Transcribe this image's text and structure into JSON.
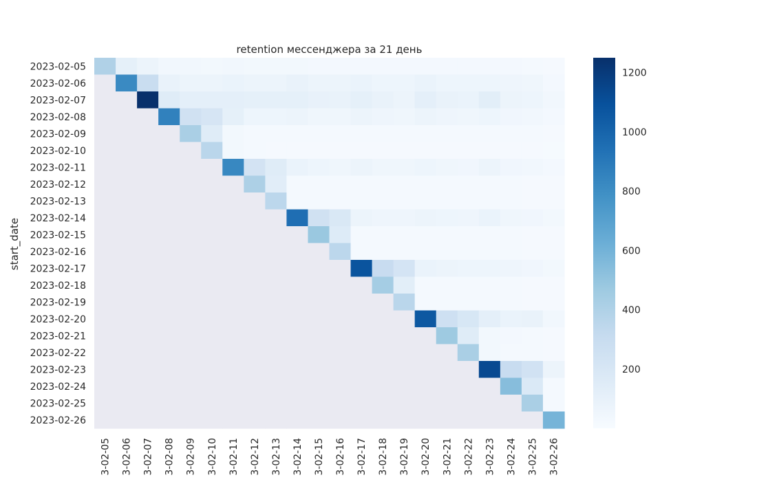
{
  "chart_data": {
    "type": "heatmap",
    "title": "retention мессенджера за 21 день",
    "ylabel": "start_date",
    "xlabel": "",
    "colormap": "Blues",
    "missing_color": "#eaeaf2",
    "x_tick_labels": [
      "3-02-05",
      "3-02-06",
      "3-02-07",
      "3-02-08",
      "3-02-09",
      "3-02-10",
      "3-02-11",
      "3-02-12",
      "3-02-13",
      "3-02-14",
      "3-02-15",
      "3-02-16",
      "3-02-17",
      "3-02-18",
      "3-02-19",
      "3-02-20",
      "3-02-21",
      "3-02-22",
      "3-02-23",
      "3-02-24",
      "3-02-25",
      "3-02-26"
    ],
    "y_categories": [
      "2023-02-05",
      "2023-02-06",
      "2023-02-07",
      "2023-02-08",
      "2023-02-09",
      "2023-02-10",
      "2023-02-11",
      "2023-02-12",
      "2023-02-13",
      "2023-02-14",
      "2023-02-15",
      "2023-02-16",
      "2023-02-17",
      "2023-02-18",
      "2023-02-19",
      "2023-02-20",
      "2023-02-21",
      "2023-02-22",
      "2023-02-23",
      "2023-02-24",
      "2023-02-25",
      "2023-02-26"
    ],
    "colorbar": {
      "min": 0,
      "max": 1250,
      "ticks": [
        200,
        400,
        600,
        800,
        1000,
        1200
      ]
    },
    "values": [
      [
        400,
        110,
        70,
        40,
        35,
        30,
        40,
        30,
        30,
        30,
        25,
        25,
        25,
        25,
        25,
        25,
        25,
        25,
        25,
        25,
        20,
        15
      ],
      [
        null,
        820,
        290,
        90,
        70,
        70,
        80,
        70,
        70,
        90,
        70,
        70,
        80,
        60,
        60,
        80,
        60,
        60,
        60,
        55,
        50,
        25
      ],
      [
        null,
        null,
        1250,
        150,
        120,
        120,
        120,
        110,
        110,
        110,
        95,
        90,
        110,
        90,
        70,
        120,
        90,
        80,
        130,
        70,
        60,
        40
      ],
      [
        null,
        null,
        null,
        860,
        250,
        210,
        110,
        60,
        60,
        70,
        50,
        50,
        70,
        55,
        50,
        70,
        55,
        50,
        60,
        45,
        40,
        25
      ],
      [
        null,
        null,
        null,
        null,
        420,
        150,
        30,
        20,
        20,
        20,
        20,
        20,
        20,
        20,
        20,
        20,
        20,
        20,
        20,
        20,
        20,
        15
      ],
      [
        null,
        null,
        null,
        null,
        null,
        360,
        30,
        20,
        15,
        15,
        15,
        15,
        15,
        15,
        15,
        15,
        15,
        15,
        15,
        15,
        15,
        10
      ],
      [
        null,
        null,
        null,
        null,
        null,
        null,
        830,
        230,
        150,
        80,
        60,
        50,
        70,
        50,
        50,
        60,
        50,
        45,
        70,
        45,
        40,
        25
      ],
      [
        null,
        null,
        null,
        null,
        null,
        null,
        null,
        410,
        140,
        20,
        20,
        20,
        20,
        20,
        20,
        20,
        20,
        20,
        20,
        20,
        15,
        15
      ],
      [
        null,
        null,
        null,
        null,
        null,
        null,
        null,
        null,
        350,
        20,
        20,
        20,
        20,
        20,
        20,
        20,
        20,
        20,
        20,
        20,
        15,
        15
      ],
      [
        null,
        null,
        null,
        null,
        null,
        null,
        null,
        null,
        null,
        950,
        250,
        190,
        70,
        55,
        55,
        70,
        60,
        55,
        80,
        50,
        45,
        30
      ],
      [
        null,
        null,
        null,
        null,
        null,
        null,
        null,
        null,
        null,
        null,
        480,
        160,
        20,
        20,
        20,
        20,
        20,
        20,
        20,
        20,
        15,
        15
      ],
      [
        null,
        null,
        null,
        null,
        null,
        null,
        null,
        null,
        null,
        null,
        null,
        350,
        20,
        20,
        20,
        20,
        20,
        20,
        20,
        20,
        15,
        15
      ],
      [
        null,
        null,
        null,
        null,
        null,
        null,
        null,
        null,
        null,
        null,
        null,
        null,
        1080,
        300,
        220,
        80,
        70,
        60,
        60,
        55,
        45,
        30
      ],
      [
        null,
        null,
        null,
        null,
        null,
        null,
        null,
        null,
        null,
        null,
        null,
        null,
        null,
        440,
        130,
        20,
        20,
        20,
        20,
        20,
        15,
        15
      ],
      [
        null,
        null,
        null,
        null,
        null,
        null,
        null,
        null,
        null,
        null,
        null,
        null,
        null,
        null,
        360,
        20,
        20,
        20,
        20,
        20,
        15,
        15
      ],
      [
        null,
        null,
        null,
        null,
        null,
        null,
        null,
        null,
        null,
        null,
        null,
        null,
        null,
        null,
        null,
        1060,
        260,
        200,
        120,
        80,
        90,
        40
      ],
      [
        null,
        null,
        null,
        null,
        null,
        null,
        null,
        null,
        null,
        null,
        null,
        null,
        null,
        null,
        null,
        null,
        470,
        150,
        30,
        25,
        20,
        15
      ],
      [
        null,
        null,
        null,
        null,
        null,
        null,
        null,
        null,
        null,
        null,
        null,
        null,
        null,
        null,
        null,
        null,
        null,
        420,
        30,
        20,
        20,
        15
      ],
      [
        null,
        null,
        null,
        null,
        null,
        null,
        null,
        null,
        null,
        null,
        null,
        null,
        null,
        null,
        null,
        null,
        null,
        null,
        1130,
        300,
        240,
        70
      ],
      [
        null,
        null,
        null,
        null,
        null,
        null,
        null,
        null,
        null,
        null,
        null,
        null,
        null,
        null,
        null,
        null,
        null,
        null,
        null,
        540,
        180,
        20
      ],
      [
        null,
        null,
        null,
        null,
        null,
        null,
        null,
        null,
        null,
        null,
        null,
        null,
        null,
        null,
        null,
        null,
        null,
        null,
        null,
        null,
        420,
        20
      ],
      [
        null,
        null,
        null,
        null,
        null,
        null,
        null,
        null,
        null,
        null,
        null,
        null,
        null,
        null,
        null,
        null,
        null,
        null,
        null,
        null,
        null,
        590
      ]
    ]
  }
}
